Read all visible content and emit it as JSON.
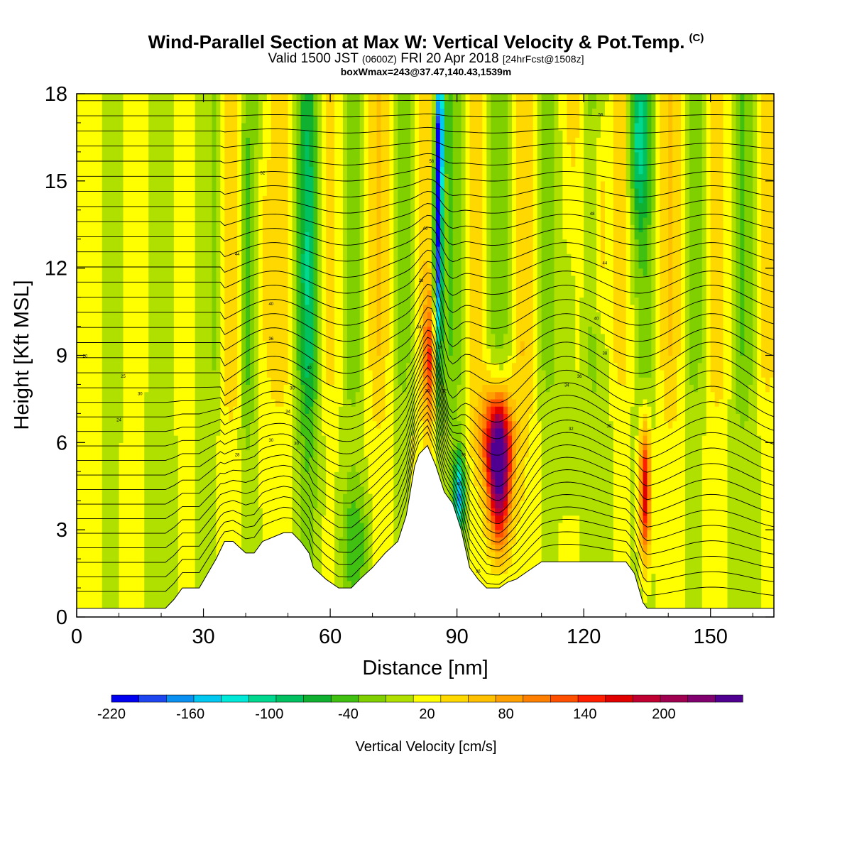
{
  "title": {
    "main": "Wind-Parallel Section at Max W: Vertical Velocity & Pot.Temp.",
    "copyright": "(C)",
    "valid_prefix": "Valid 1500 JST",
    "valid_zulu": "(0600Z)",
    "valid_date": "FRI 20 Apr 2018",
    "forecast": "[24hrFcst@1508z]",
    "boxwmax": "boxWmax=243@37.47,140.43,1539m"
  },
  "chart_data": {
    "type": "heatmap",
    "xlabel": "Distance [nm]",
    "ylabel": "Height [Kft MSL]",
    "xlim": [
      0,
      165
    ],
    "ylim": [
      0,
      18
    ],
    "x_ticks": [
      0,
      30,
      60,
      90,
      120,
      150
    ],
    "y_ticks": [
      0,
      3,
      6,
      9,
      12,
      15,
      18
    ],
    "colorbar": {
      "label": "Vertical Velocity [cm/s]",
      "min": -220,
      "max": 240,
      "step": 20,
      "tick_labels": [
        -220,
        -160,
        -100,
        -40,
        20,
        80,
        140,
        200
      ],
      "colors": [
        "#0000f0",
        "#1e46f0",
        "#0a90f0",
        "#00c8f0",
        "#00e8d8",
        "#00d890",
        "#00c060",
        "#10b030",
        "#40c010",
        "#80d000",
        "#b0e000",
        "#ffff00",
        "#ffd800",
        "#ffc000",
        "#ffa000",
        "#ff8000",
        "#ff5000",
        "#ff1e00",
        "#e00000",
        "#c00030",
        "#a00050",
        "#800070",
        "#500090"
      ]
    },
    "terrain_profile": [
      [
        0,
        0.3
      ],
      [
        21,
        0.3
      ],
      [
        23,
        0.6
      ],
      [
        25,
        1.0
      ],
      [
        29,
        1.0
      ],
      [
        31,
        1.5
      ],
      [
        33,
        2.0
      ],
      [
        35,
        2.6
      ],
      [
        37,
        2.6
      ],
      [
        40,
        2.2
      ],
      [
        42,
        2.2
      ],
      [
        44,
        2.6
      ],
      [
        49,
        2.9
      ],
      [
        51,
        2.9
      ],
      [
        53,
        2.6
      ],
      [
        55,
        2.2
      ],
      [
        56,
        1.7
      ],
      [
        59,
        1.3
      ],
      [
        62,
        1.0
      ],
      [
        65,
        1.0
      ],
      [
        67,
        1.3
      ],
      [
        70,
        1.7
      ],
      [
        73,
        2.2
      ],
      [
        76,
        2.6
      ],
      [
        78,
        3.5
      ],
      [
        80,
        5.2
      ],
      [
        81,
        5.6
      ],
      [
        83,
        5.9
      ],
      [
        85,
        5.2
      ],
      [
        87,
        4.3
      ],
      [
        89,
        3.9
      ],
      [
        91,
        3.0
      ],
      [
        93,
        1.7
      ],
      [
        95,
        1.3
      ],
      [
        97,
        1.0
      ],
      [
        100,
        1.0
      ],
      [
        102,
        1.2
      ],
      [
        104,
        1.3
      ],
      [
        107,
        1.6
      ],
      [
        110,
        1.9
      ],
      [
        130,
        1.9
      ],
      [
        132,
        1.5
      ],
      [
        133,
        1.0
      ],
      [
        134,
        0.5
      ],
      [
        135,
        0.3
      ],
      [
        165,
        0.3
      ]
    ],
    "updraft_cores": [
      {
        "x": 100,
        "y": 4.8,
        "w": 240
      },
      {
        "x": 134.5,
        "y": 4.3,
        "w": 170
      },
      {
        "x": 83.5,
        "y": 8.8,
        "w": 100
      },
      {
        "x": 124,
        "y": 13.5,
        "w": 70
      }
    ],
    "downdraft_cores": [
      {
        "x": 85.5,
        "y": 13.0,
        "w": -190
      },
      {
        "x": 90.5,
        "y": 4.2,
        "w": -150
      },
      {
        "x": 133,
        "y": 16.5,
        "w": -90
      },
      {
        "x": 55,
        "y": 12.0,
        "w": -70
      }
    ],
    "isentrope_labels": [
      {
        "x": 2,
        "y": 9.0,
        "text": "20"
      },
      {
        "x": 11,
        "y": 8.3,
        "text": "25"
      },
      {
        "x": 15,
        "y": 7.7,
        "text": "30"
      },
      {
        "x": 10,
        "y": 6.8,
        "text": "24"
      },
      {
        "x": 44,
        "y": 15.3,
        "text": "52"
      },
      {
        "x": 38,
        "y": 12.5,
        "text": "44"
      },
      {
        "x": 46,
        "y": 10.8,
        "text": "40"
      },
      {
        "x": 46,
        "y": 9.6,
        "text": "36"
      },
      {
        "x": 55,
        "y": 8.6,
        "text": "40"
      },
      {
        "x": 51,
        "y": 7.9,
        "text": "30"
      },
      {
        "x": 50,
        "y": 7.1,
        "text": "34"
      },
      {
        "x": 46,
        "y": 6.1,
        "text": "30"
      },
      {
        "x": 38,
        "y": 5.6,
        "text": "28"
      },
      {
        "x": 52,
        "y": 6.0,
        "text": "30"
      },
      {
        "x": 84,
        "y": 15.7,
        "text": "56"
      },
      {
        "x": 82.5,
        "y": 13.4,
        "text": "46"
      },
      {
        "x": 81.5,
        "y": 11.6,
        "text": "38"
      },
      {
        "x": 81,
        "y": 10.0,
        "text": "34"
      },
      {
        "x": 86,
        "y": 9.3,
        "text": "20"
      },
      {
        "x": 83,
        "y": 7.8,
        "text": "30"
      },
      {
        "x": 87,
        "y": 7.8,
        "text": "32"
      },
      {
        "x": 91.5,
        "y": 5.6,
        "text": "38"
      },
      {
        "x": 90.5,
        "y": 4.6,
        "text": "48"
      },
      {
        "x": 95,
        "y": 1.6,
        "text": "36"
      },
      {
        "x": 124,
        "y": 17.3,
        "text": "56"
      },
      {
        "x": 122,
        "y": 13.9,
        "text": "48"
      },
      {
        "x": 125,
        "y": 12.2,
        "text": "44"
      },
      {
        "x": 123,
        "y": 10.3,
        "text": "40"
      },
      {
        "x": 125,
        "y": 9.1,
        "text": "38"
      },
      {
        "x": 119,
        "y": 8.3,
        "text": "36"
      },
      {
        "x": 116,
        "y": 8.0,
        "text": "34"
      },
      {
        "x": 117,
        "y": 6.5,
        "text": "32"
      },
      {
        "x": 126,
        "y": 6.6,
        "text": "30"
      }
    ]
  }
}
